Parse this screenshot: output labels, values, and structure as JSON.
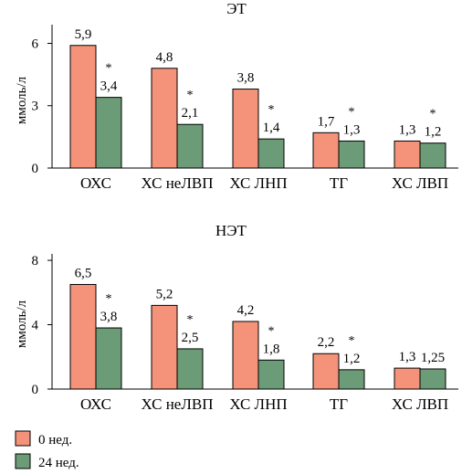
{
  "colors": {
    "week0": "#f4937a",
    "week24": "#6b9b77",
    "axis": "#000000"
  },
  "legend": {
    "items": [
      "0 нед.",
      "24 нед."
    ]
  },
  "chart_data": [
    {
      "type": "bar",
      "title": "ЭТ",
      "ylabel": "ммоль/л",
      "ylim": [
        0,
        6.9
      ],
      "yticks": [
        "0",
        "3",
        "6"
      ],
      "categories": [
        "ОХС",
        "ХС неЛВП",
        "ХС ЛНП",
        "ТГ",
        "ХС ЛВП"
      ],
      "series": [
        {
          "name": "0 нед.",
          "values": [
            5.9,
            4.8,
            3.8,
            1.7,
            1.3
          ],
          "labels": [
            "5,9",
            "4,8",
            "3,8",
            "1,7",
            "1,3"
          ]
        },
        {
          "name": "24 нед.",
          "values": [
            3.4,
            2.1,
            1.4,
            1.3,
            1.2
          ],
          "labels": [
            "3,4",
            "2,1",
            "1,4",
            "1,3",
            "1,2"
          ],
          "significance": [
            "*",
            "*",
            "*",
            "*",
            "*"
          ]
        }
      ]
    },
    {
      "type": "bar",
      "title": "НЭТ",
      "ylabel": "ммоль/л",
      "ylim": [
        0,
        8.4
      ],
      "yticks": [
        "0",
        "4",
        "8"
      ],
      "categories": [
        "ОХС",
        "ХС неЛВП",
        "ХС ЛНП",
        "ТГ",
        "ХС ЛВП"
      ],
      "series": [
        {
          "name": "0 нед.",
          "values": [
            6.5,
            5.2,
            4.2,
            2.2,
            1.3
          ],
          "labels": [
            "6,5",
            "5,2",
            "4,2",
            "2,2",
            "1,3"
          ]
        },
        {
          "name": "24 нед.",
          "values": [
            3.8,
            2.5,
            1.8,
            1.2,
            1.25
          ],
          "labels": [
            "3,8",
            "2,5",
            "1,8",
            "1,2",
            "1,25"
          ],
          "significance": [
            "*",
            "*",
            "*",
            "*",
            ""
          ]
        }
      ]
    }
  ]
}
